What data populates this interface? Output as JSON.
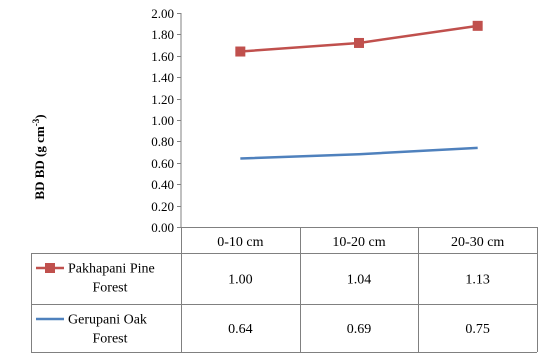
{
  "chart_data": {
    "type": "line",
    "ylabel_prefix": "BD",
    "ylabel": "BD (g cm",
    "ylabel_sup": "-3",
    "ylabel_close": ")",
    "ylim": [
      0,
      2.0
    ],
    "ytick_step": 0.2,
    "yticks": [
      "0.00",
      "0.20",
      "0.40",
      "0.60",
      "0.80",
      "1.00",
      "1.20",
      "1.40",
      "1.60",
      "1.80",
      "2.00"
    ],
    "categories": [
      "0-10 cm",
      "10-20 cm",
      "20-30 cm"
    ],
    "series": [
      {
        "name": "Pakhapani Pine Forest",
        "name_lines": [
          "Pakhapani Pine",
          "Forest"
        ],
        "line_values": [
          1.64,
          1.72,
          1.88
        ],
        "table_labels": [
          "1.00",
          "1.04",
          "1.13"
        ],
        "color": "#c0504d",
        "marker": "square"
      },
      {
        "name": "Gerupani Oak Forest",
        "name_lines": [
          "Gerupani Oak",
          "Forest"
        ],
        "line_values": [
          0.64,
          0.68,
          0.74
        ],
        "table_labels": [
          "0.64",
          "0.69",
          "0.75"
        ],
        "color": "#4f81bd",
        "marker": "none"
      }
    ],
    "grid": false,
    "legend_placement": "data-table-left"
  }
}
